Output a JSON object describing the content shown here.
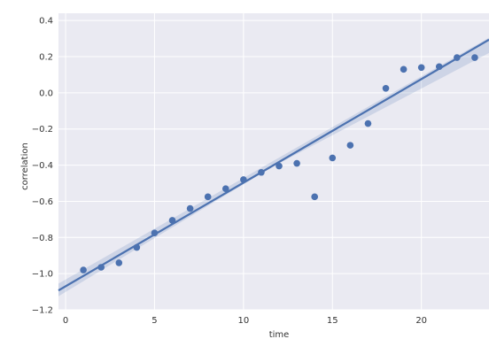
{
  "chart_data": {
    "type": "scatter",
    "title": "",
    "xlabel": "time",
    "ylabel": "correlation",
    "xlim": [
      -0.4,
      23.8
    ],
    "ylim": [
      -1.2,
      0.44
    ],
    "xticks": [
      0,
      5,
      10,
      15,
      20
    ],
    "yticks": [
      0.4,
      0.2,
      0.0,
      -0.2,
      -0.4,
      -0.6,
      -0.8,
      -1.0,
      -1.2
    ],
    "ytick_labels": [
      "0.4",
      "0.2",
      "0.0",
      "−0.2",
      "−0.4",
      "−0.6",
      "−0.8",
      "−1.0",
      "−1.2"
    ],
    "grid": true,
    "colors": {
      "points": "#4c72b0",
      "line": "#4c72b0",
      "band": "#4c72b0",
      "background": "#eaeaf2",
      "grid": "#ffffff"
    },
    "points": [
      {
        "x": 1,
        "y": -0.98
      },
      {
        "x": 2,
        "y": -0.965
      },
      {
        "x": 3,
        "y": -0.94
      },
      {
        "x": 4,
        "y": -0.855
      },
      {
        "x": 5,
        "y": -0.775
      },
      {
        "x": 6,
        "y": -0.705
      },
      {
        "x": 7,
        "y": -0.64
      },
      {
        "x": 8,
        "y": -0.575
      },
      {
        "x": 9,
        "y": -0.53
      },
      {
        "x": 10,
        "y": -0.48
      },
      {
        "x": 11,
        "y": -0.44
      },
      {
        "x": 12,
        "y": -0.405
      },
      {
        "x": 13,
        "y": -0.39
      },
      {
        "x": 14,
        "y": -0.575
      },
      {
        "x": 15,
        "y": -0.36
      },
      {
        "x": 16,
        "y": -0.29
      },
      {
        "x": 17,
        "y": -0.17
      },
      {
        "x": 18,
        "y": 0.025
      },
      {
        "x": 19,
        "y": 0.13
      },
      {
        "x": 20,
        "y": 0.14
      },
      {
        "x": 21,
        "y": 0.145
      },
      {
        "x": 22,
        "y": 0.195
      },
      {
        "x": 23,
        "y": 0.195
      }
    ],
    "regression": {
      "intercept": -1.07,
      "slope": 0.0573,
      "ci": [
        {
          "x": -0.4,
          "lower": -1.125,
          "upper": -1.055
        },
        {
          "x": 11.7,
          "lower": -0.405,
          "upper": -0.375
        },
        {
          "x": 23.8,
          "lower": 0.22,
          "upper": 0.305
        }
      ]
    }
  }
}
